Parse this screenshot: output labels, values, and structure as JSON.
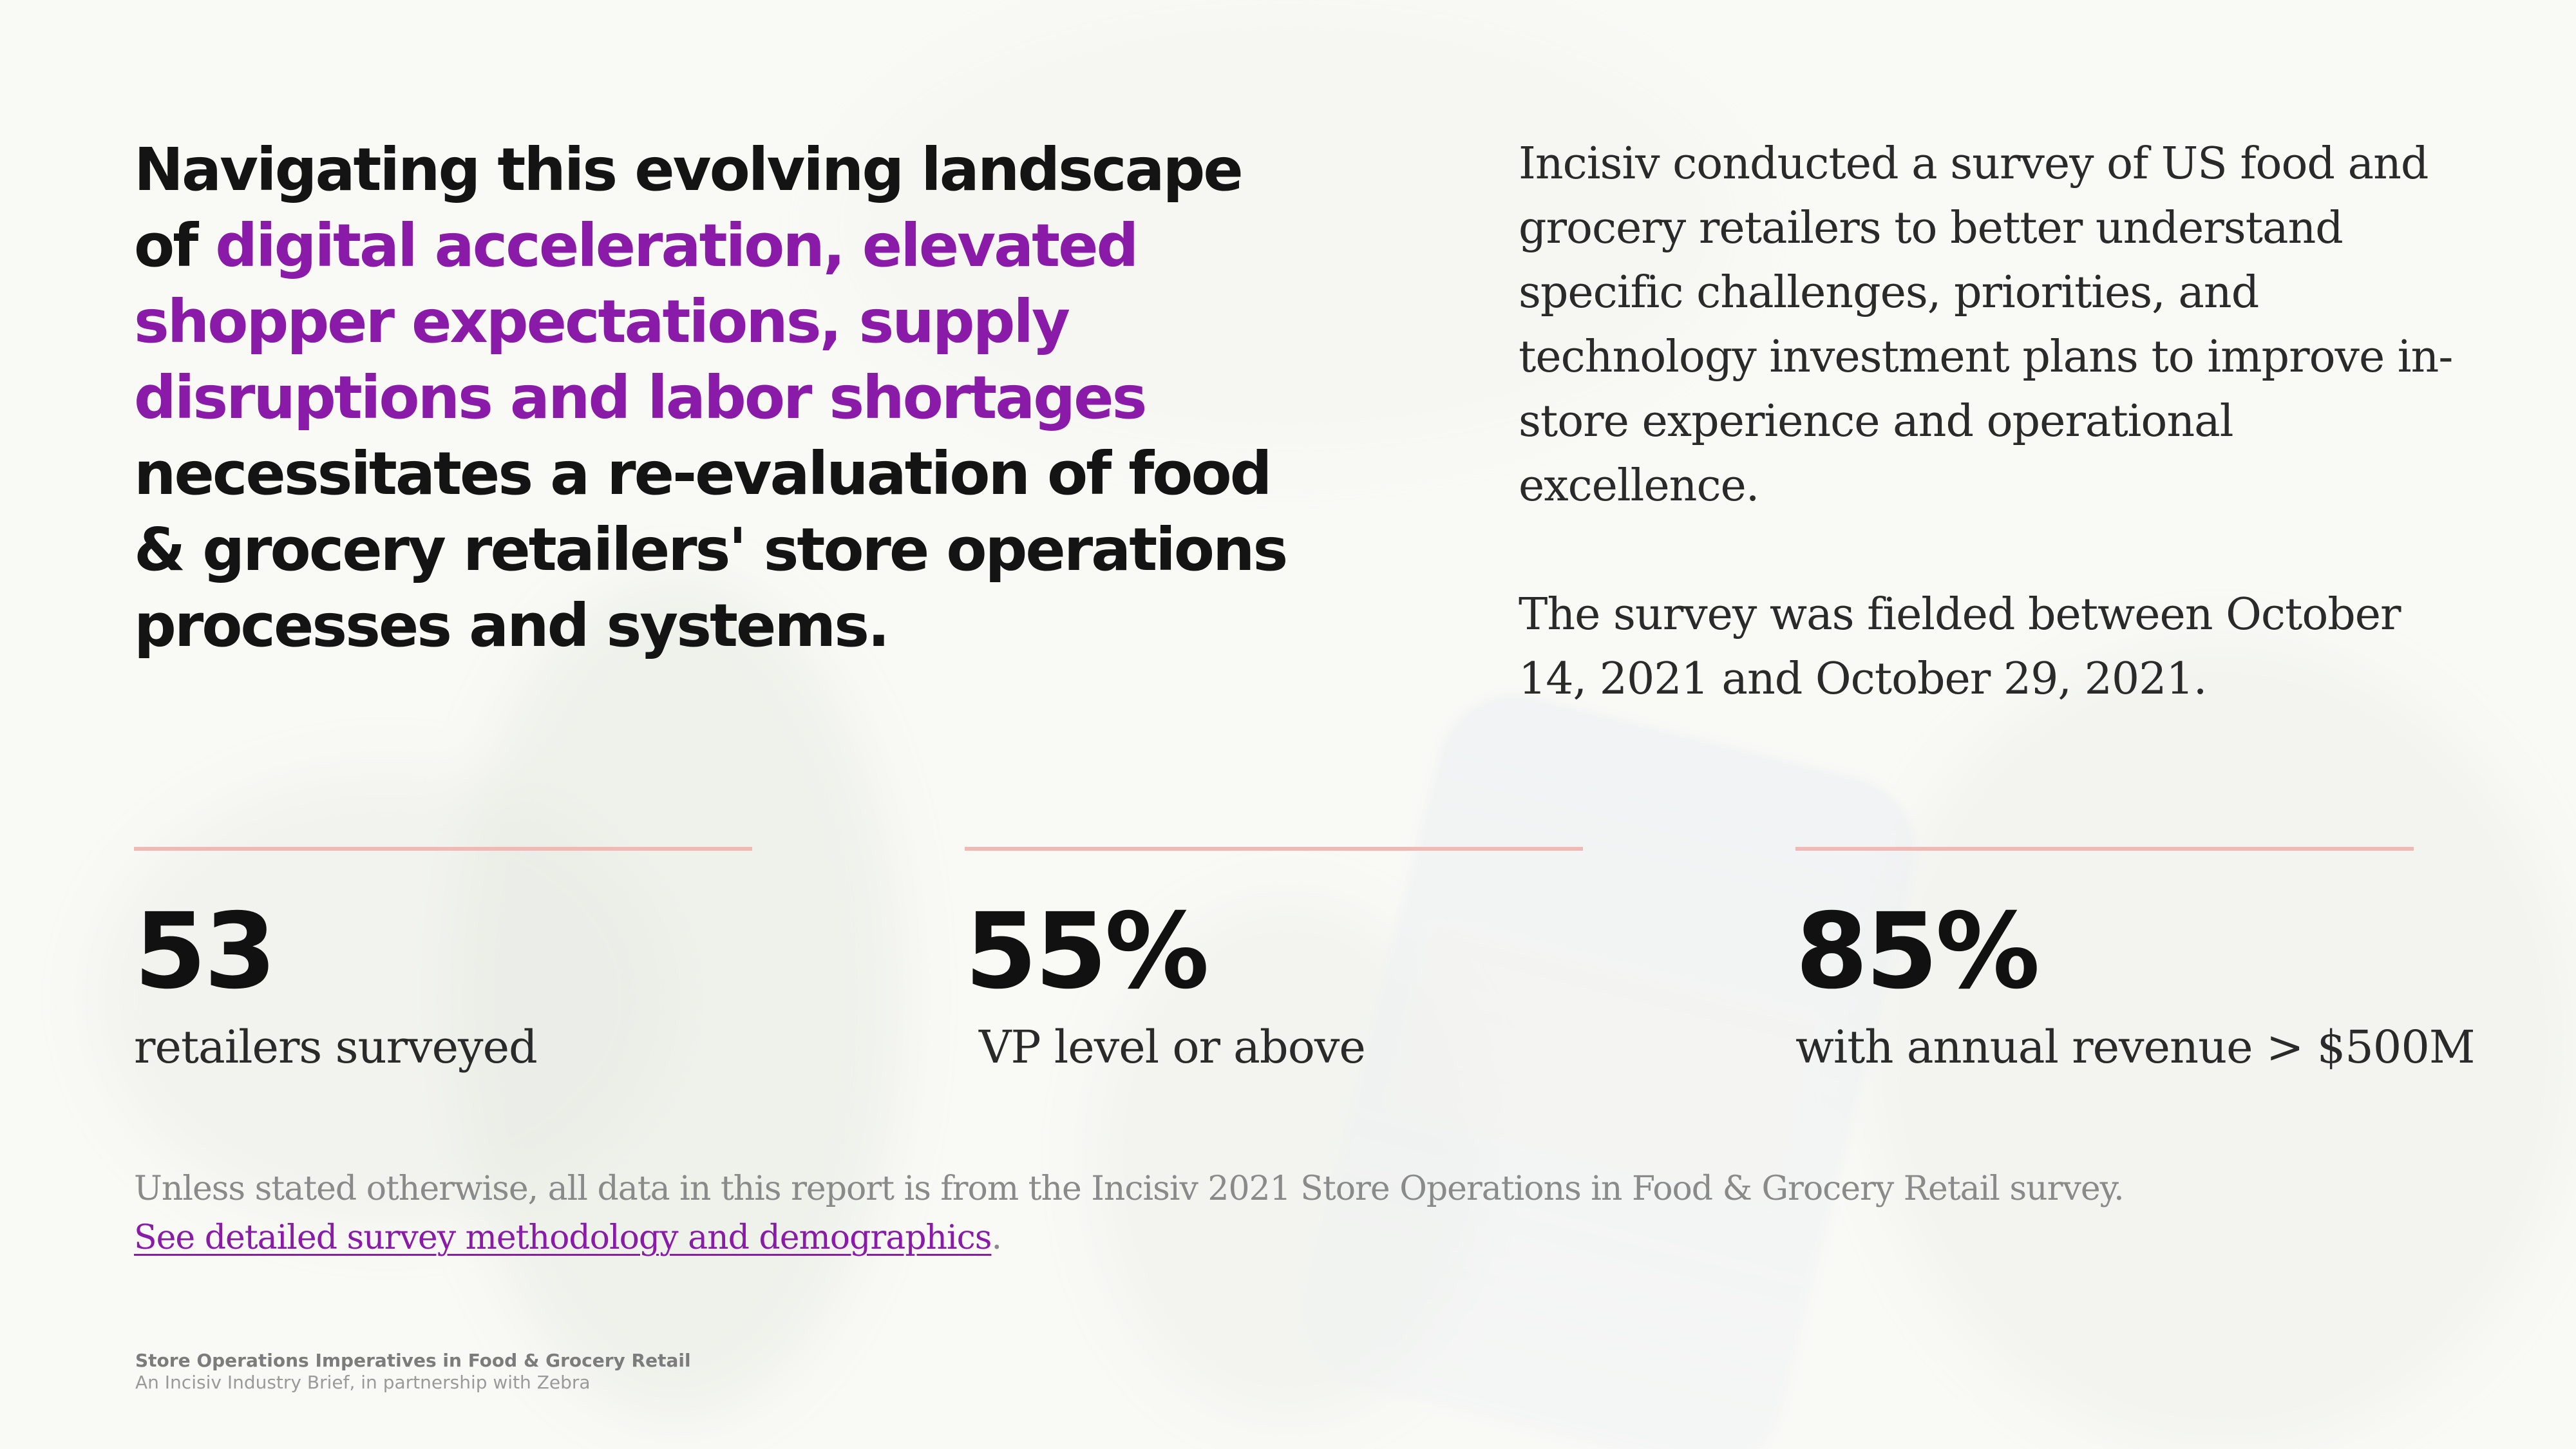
{
  "headline": {
    "lead": "Navigating this evolving landscape of ",
    "highlight": "digital acceleration, elevated shopper expectations, supply disruptions and labor shortages",
    "tail": " necessitates a re-evaluation of food & grocery retailers' store operations processes and systems."
  },
  "intro": {
    "paragraph1": "Incisiv conducted a survey of US food and grocery retailers to better understand specific challenges, priorities, and technology investment plans to improve in-store experience and operational excellence.",
    "paragraph2": "The survey was fielded between October 14, 2021 and October 29, 2021."
  },
  "stats": [
    {
      "value": "53",
      "label": "retailers surveyed"
    },
    {
      "value": "55%",
      "label": "VP level or above"
    },
    {
      "value": "85%",
      "label": "with annual revenue > $500M"
    }
  ],
  "note": {
    "text": "Unless stated otherwise, all data in this report is from the Incisiv 2021 Store Operations in Food & Grocery Retail survey.",
    "link_text": "See detailed survey methodology and demographics",
    "link_suffix": "."
  },
  "footer": {
    "title": "Store Operations Imperatives in Food & Grocery Retail",
    "subtitle": "An Incisiv Industry Brief, in partnership with Zebra"
  },
  "colors": {
    "accent": "#8a1aa8",
    "rule": "#f2b9b4",
    "text": "#141414"
  }
}
